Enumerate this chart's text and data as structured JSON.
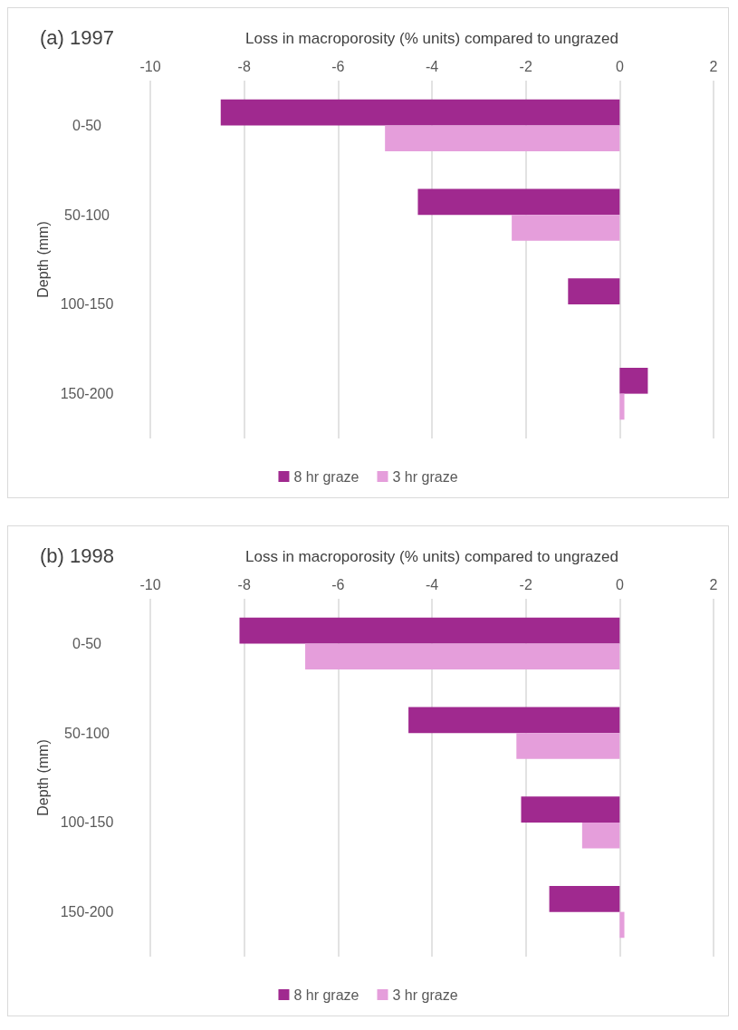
{
  "chart_data": [
    {
      "type": "bar",
      "orientation": "horizontal",
      "title": "(a) 1997",
      "xlabel": "Loss in macroporosity (% units) compared to ungrazed",
      "ylabel": "Depth (mm)",
      "categories": [
        "0-50",
        "50-100",
        "100-150",
        "150-200"
      ],
      "series": [
        {
          "name": "8 hr graze",
          "color": "#a0298f",
          "values": [
            -8.5,
            -4.3,
            -1.1,
            0.6
          ]
        },
        {
          "name": "3 hr graze",
          "color": "#e59edb",
          "values": [
            -5.0,
            -2.3,
            null,
            0.1
          ]
        }
      ],
      "xlim": [
        -10,
        2
      ],
      "xticks": [
        -10,
        -8,
        -6,
        -4,
        -2,
        0,
        2
      ],
      "grid": "x",
      "legend": "bottom"
    },
    {
      "type": "bar",
      "orientation": "horizontal",
      "title": "(b) 1998",
      "xlabel": "Loss in macroporosity (% units) compared to ungrazed",
      "ylabel": "Depth (mm)",
      "categories": [
        "0-50",
        "50-100",
        "100-150",
        "150-200"
      ],
      "series": [
        {
          "name": "8 hr graze",
          "color": "#a0298f",
          "values": [
            -8.1,
            -4.5,
            -2.1,
            -1.5
          ]
        },
        {
          "name": "3 hr graze",
          "color": "#e59edb",
          "values": [
            -6.7,
            -2.2,
            -0.8,
            0.1
          ]
        }
      ],
      "xlim": [
        -10,
        2
      ],
      "xticks": [
        -10,
        -8,
        -6,
        -4,
        -2,
        0,
        2
      ],
      "grid": "x",
      "legend": "bottom"
    }
  ]
}
